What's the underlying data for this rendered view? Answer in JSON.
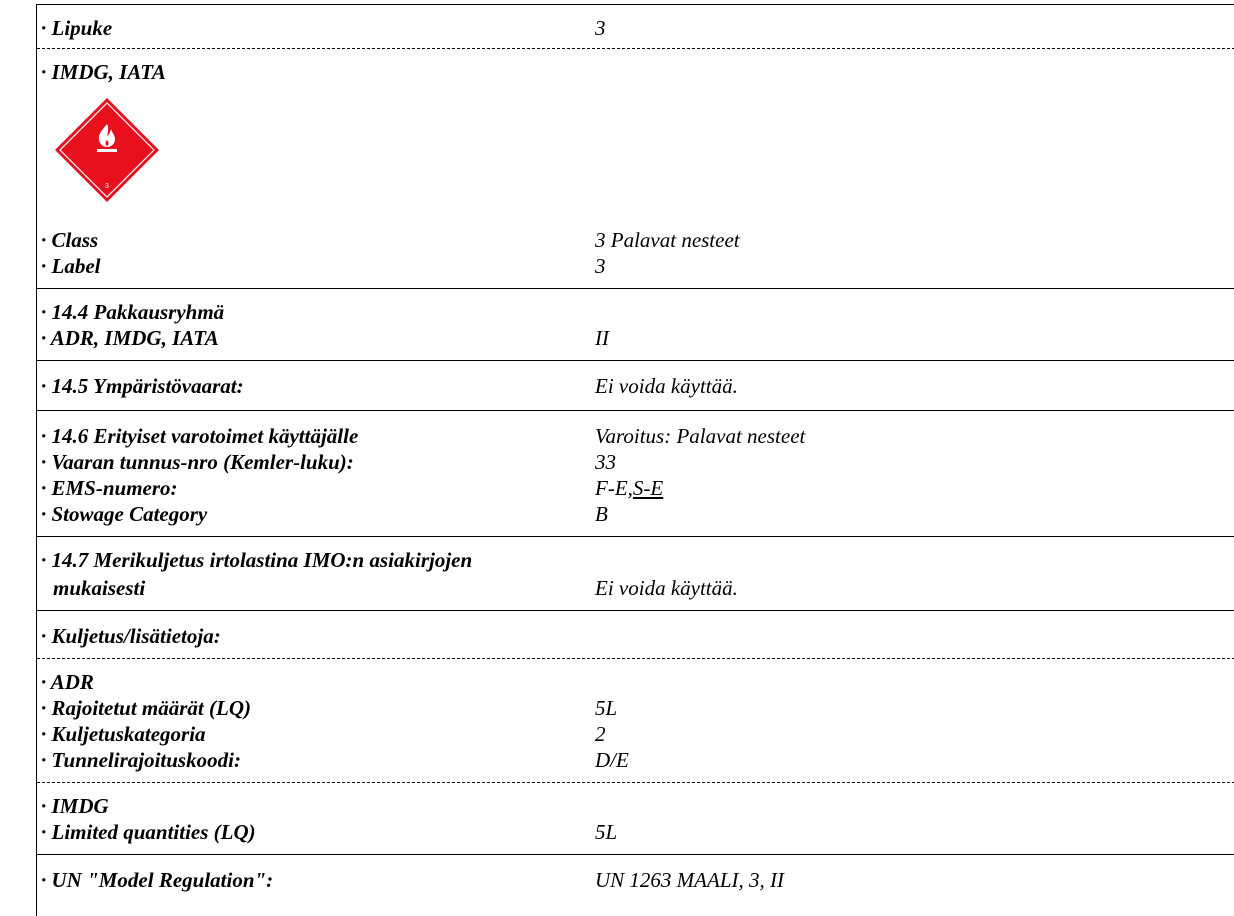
{
  "rows": {
    "lipuke": {
      "label": "· Lipuke",
      "value": "3"
    },
    "imdg_iata": {
      "label": "· IMDG, IATA"
    },
    "placard": {
      "icon": "flammable-liquid-class-3-diamond",
      "number": "3",
      "color": "#e8101c"
    },
    "class": {
      "label": "· Class",
      "value": "3 Palavat nesteet"
    },
    "label": {
      "label": "· Label",
      "value": "3"
    },
    "pakkausryhma": {
      "label": "· 14.4 Pakkausryhmä"
    },
    "adr_imdg_iata": {
      "label": "· ADR, IMDG, IATA",
      "value": "II"
    },
    "ymparisto": {
      "label": "· 14.5 Ympäristövaarat:",
      "value": "Ei voida käyttää."
    },
    "erityiset": {
      "label": "· 14.6 Erityiset varotoimet käyttäjälle",
      "value": "Varoitus: Palavat nesteet"
    },
    "kemler": {
      "label": "· Vaaran tunnus-nro (Kemler-luku):",
      "value": "33"
    },
    "ems": {
      "label": "· EMS-numero:",
      "value_prefix": "F-E,",
      "value_underlined": "S-E"
    },
    "stowage": {
      "label": "· Stowage Category",
      "value": "B"
    },
    "merikuljetus": {
      "label_line1": "· 14.7 Merikuljetus irtolastina IMO:n asiakirjojen",
      "label_line2": "mukaisesti",
      "value": "Ei voida käyttää."
    },
    "kuljetus": {
      "label": "· Kuljetus/lisätietoja:"
    },
    "adr": {
      "label": "· ADR"
    },
    "rajoitetut": {
      "label": "· Rajoitetut määrät (LQ)",
      "value": "5L"
    },
    "kuljetuskategoria": {
      "label": "· Kuljetuskategoria",
      "value": "2"
    },
    "tunneli": {
      "label": "· Tunnelirajoituskoodi:",
      "value": "D/E"
    },
    "imdg": {
      "label": "· IMDG"
    },
    "limited": {
      "label": "· Limited quantities (LQ)",
      "value": "5L"
    },
    "un_model": {
      "label": "· UN \"Model Regulation\":",
      "value": "UN 1263 MAALI, 3, II"
    }
  }
}
